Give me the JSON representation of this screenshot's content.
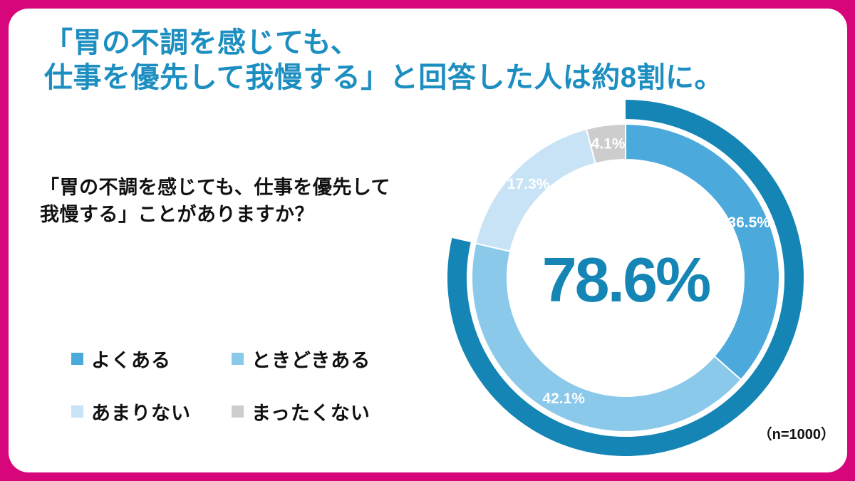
{
  "frame": {
    "border_color": "#D7067B",
    "card_background": "#FFFFFF"
  },
  "title": {
    "line1": "「胃の不調を感じても、",
    "line2": "仕事を優先して我慢する」と回答した人は約8割に。",
    "color": "#1C8EC0"
  },
  "question": {
    "line1": "「胃の不調を感じても、仕事を優先して",
    "line2": "我慢する」ことがありますか？"
  },
  "chart_data": {
    "type": "donut",
    "title": "「胃の不調を感じても、仕事を優先して我慢する」ことがありますか？",
    "center_label": "78.6%",
    "center_label_color": "#1485B5",
    "start_angle_deg": 0,
    "direction": "clockwise",
    "segments": [
      {
        "label": "よくある",
        "value": 36.5,
        "display": "36.5%",
        "color": "#4BA9DC"
      },
      {
        "label": "ときどきある",
        "value": 42.1,
        "display": "42.1%",
        "color": "#8BC9EB"
      },
      {
        "label": "あまりない",
        "value": 17.3,
        "display": "17.3%",
        "color": "#C7E3F5"
      },
      {
        "label": "まったくない",
        "value": 4.1,
        "display": "4.1%",
        "color": "#CDCDCD"
      }
    ],
    "highlight_arc": {
      "value": 78.6,
      "note": "outer arc spanning よくある + ときどきある",
      "color": "#1485B5"
    },
    "sample_size_label": "（n=1000）",
    "legend_position": "left-bottom",
    "labels_color": "#FFFFFF"
  }
}
